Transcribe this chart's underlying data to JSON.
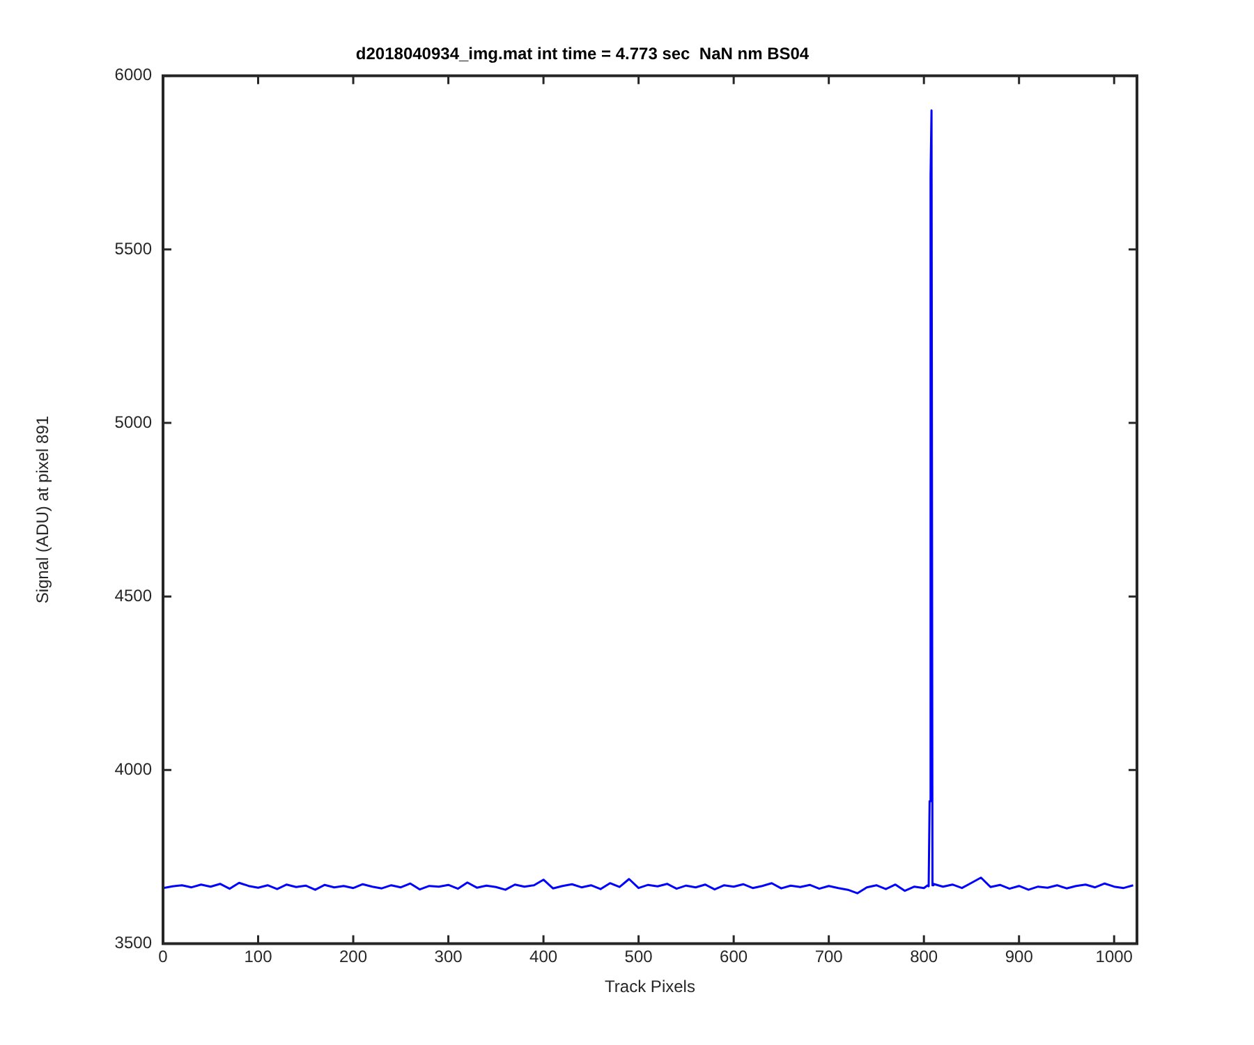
{
  "chart_data": {
    "type": "line",
    "title": "d2018040934_img.mat int time = 4.773 sec  NaN nm BS04",
    "xlabel": "Track Pixels",
    "ylabel": "Signal (ADU) at pixel 891",
    "x": [
      0,
      10,
      20,
      30,
      40,
      50,
      60,
      70,
      80,
      90,
      100,
      110,
      120,
      130,
      140,
      150,
      160,
      170,
      180,
      190,
      200,
      210,
      220,
      230,
      240,
      250,
      260,
      270,
      280,
      290,
      300,
      310,
      320,
      330,
      340,
      350,
      360,
      370,
      380,
      390,
      400,
      410,
      420,
      430,
      440,
      450,
      460,
      470,
      480,
      490,
      500,
      510,
      520,
      530,
      540,
      550,
      560,
      570,
      580,
      590,
      600,
      610,
      620,
      630,
      640,
      650,
      660,
      670,
      680,
      690,
      700,
      710,
      720,
      730,
      740,
      750,
      760,
      770,
      780,
      790,
      800,
      804,
      805,
      806,
      807,
      808,
      809,
      810,
      820,
      830,
      840,
      850,
      860,
      870,
      880,
      890,
      900,
      910,
      920,
      930,
      940,
      950,
      960,
      970,
      980,
      990,
      1000,
      1010,
      1020
    ],
    "series": [
      {
        "color": "#0000ff",
        "values": [
          3660,
          3665,
          3668,
          3662,
          3670,
          3664,
          3672,
          3658,
          3675,
          3666,
          3661,
          3668,
          3657,
          3670,
          3663,
          3667,
          3655,
          3669,
          3662,
          3666,
          3660,
          3671,
          3664,
          3659,
          3668,
          3662,
          3673,
          3656,
          3666,
          3664,
          3669,
          3658,
          3676,
          3661,
          3667,
          3663,
          3655,
          3670,
          3664,
          3668,
          3684,
          3659,
          3666,
          3671,
          3662,
          3668,
          3657,
          3674,
          3663,
          3686,
          3660,
          3669,
          3665,
          3672,
          3658,
          3667,
          3662,
          3670,
          3656,
          3668,
          3664,
          3671,
          3660,
          3666,
          3674,
          3659,
          3667,
          3663,
          3669,
          3658,
          3666,
          3660,
          3655,
          3645,
          3662,
          3668,
          3657,
          3670,
          3652,
          3664,
          3660,
          3668,
          3665,
          3910,
          5710,
          5900,
          3668,
          3672,
          3664,
          3670,
          3660,
          3675,
          3690,
          3663,
          3669,
          3658,
          3666,
          3655,
          3664,
          3661,
          3668,
          3659,
          3666,
          3670,
          3662,
          3673,
          3664,
          3660,
          3668
        ]
      }
    ],
    "xlim": [
      0,
      1024
    ],
    "xticks": [
      0,
      100,
      200,
      300,
      400,
      500,
      600,
      700,
      800,
      900,
      1000
    ],
    "ylim": [
      3500,
      6000
    ],
    "yticks": [
      3500,
      4000,
      4500,
      5000,
      5500,
      6000
    ],
    "grid": false,
    "legend": false,
    "marker": "none",
    "line_style": "solid"
  }
}
